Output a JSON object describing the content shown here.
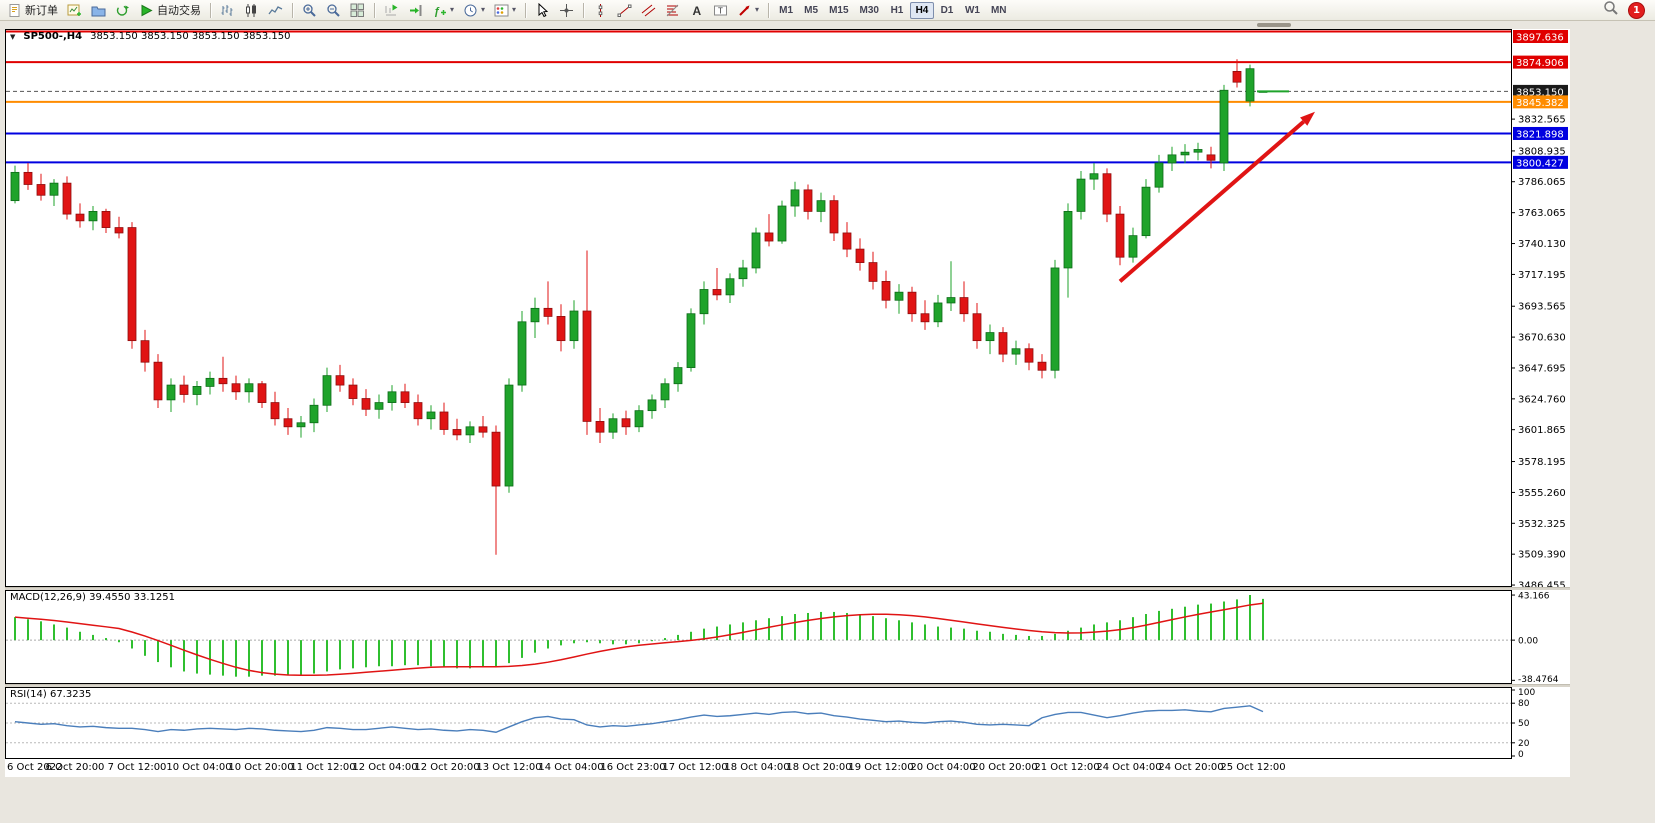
{
  "toolbar": {
    "new_order": {
      "label": "新订单"
    },
    "autotrade": {
      "label": "自动交易"
    },
    "timeframes": [
      "M1",
      "M5",
      "M15",
      "M30",
      "H1",
      "H4",
      "D1",
      "W1",
      "MN"
    ],
    "active_timeframe": "H4",
    "notification": {
      "count": "1"
    }
  },
  "chart_data": {
    "type": "candlestick",
    "symbol": "SP500-,H4",
    "ohlc_readout": "3853.150 3853.150 3853.150 3853.150",
    "colors": {
      "up": "#1fa32b",
      "up_border": "#0c6b18",
      "down": "#e01414",
      "down_border": "#8f0d0d",
      "macd": "#2fbf2f",
      "macd_signal": "#e01414",
      "rsi": "#4a7ebb",
      "line_red": "#e00000",
      "line_orange": "#ff8c00",
      "line_blue": "#0000e0",
      "current_price_tag": "#1a1a1a"
    },
    "price_axis": {
      "max": 3899.5,
      "min": 3485.0,
      "labels": [
        "3832.565",
        "3808.935",
        "3786.065",
        "3763.065",
        "3740.130",
        "3717.195",
        "3693.565",
        "3670.630",
        "3647.695",
        "3624.760",
        "3601.865",
        "3578.195",
        "3555.260",
        "3532.325",
        "3509.390",
        "3486.455"
      ]
    },
    "hlines": [
      {
        "price": 3897.636,
        "label": "3897.636",
        "color": "#e00000",
        "width": 2
      },
      {
        "price": 3874.906,
        "label": "3874.906",
        "color": "#e00000",
        "width": 2
      },
      {
        "price": 3853.15,
        "label": "3853.150",
        "color": "#555555",
        "width": 1,
        "dash": "4 3",
        "tag": "#1a1a1a"
      },
      {
        "price": 3845.382,
        "label": "3845.382",
        "color": "#ff8c00",
        "width": 2
      },
      {
        "price": 3821.898,
        "label": "3821.898",
        "color": "#0000e0",
        "width": 2
      },
      {
        "price": 3800.427,
        "label": "3800.427",
        "color": "#0000e0",
        "width": 2
      }
    ],
    "current_price": {
      "price": 3853.15,
      "label": "3853.150"
    },
    "trend_arrow": {
      "x1_bar": 85,
      "y1_price": 3712,
      "x2_bar": 100,
      "y2_price": 3838,
      "color": "#e01414"
    },
    "time_labels": [
      "6 Oct 2022",
      "6 Oct 20:00",
      "7 Oct 12:00",
      "10 Oct 04:00",
      "10 Oct 20:00",
      "11 Oct 12:00",
      "12 Oct 04:00",
      "12 Oct 20:00",
      "13 Oct 12:00",
      "14 Oct 04:00",
      "16 Oct 23:00",
      "17 Oct 12:00",
      "18 Oct 04:00",
      "18 Oct 20:00",
      "19 Oct 12:00",
      "20 Oct 04:00",
      "20 Oct 20:00",
      "21 Oct 12:00",
      "24 Oct 04:00",
      "24 Oct 20:00",
      "25 Oct 12:00"
    ],
    "candles": [
      [
        3772,
        3798,
        3770,
        3793
      ],
      [
        3793,
        3800,
        3780,
        3784
      ],
      [
        3784,
        3792,
        3772,
        3776
      ],
      [
        3776,
        3788,
        3768,
        3785
      ],
      [
        3785,
        3790,
        3758,
        3762
      ],
      [
        3762,
        3770,
        3752,
        3757
      ],
      [
        3757,
        3768,
        3750,
        3764
      ],
      [
        3764,
        3766,
        3748,
        3752
      ],
      [
        3752,
        3760,
        3744,
        3748
      ],
      [
        3752,
        3756,
        3662,
        3668
      ],
      [
        3668,
        3676,
        3645,
        3652
      ],
      [
        3652,
        3658,
        3618,
        3624
      ],
      [
        3624,
        3640,
        3615,
        3635
      ],
      [
        3635,
        3642,
        3622,
        3628
      ],
      [
        3628,
        3638,
        3620,
        3634
      ],
      [
        3634,
        3645,
        3628,
        3640
      ],
      [
        3640,
        3656,
        3630,
        3636
      ],
      [
        3636,
        3642,
        3624,
        3630
      ],
      [
        3630,
        3640,
        3622,
        3636
      ],
      [
        3636,
        3638,
        3618,
        3622
      ],
      [
        3622,
        3630,
        3605,
        3610
      ],
      [
        3610,
        3618,
        3598,
        3604
      ],
      [
        3604,
        3612,
        3596,
        3607
      ],
      [
        3607,
        3625,
        3600,
        3620
      ],
      [
        3620,
        3648,
        3615,
        3642
      ],
      [
        3642,
        3650,
        3630,
        3635
      ],
      [
        3635,
        3640,
        3620,
        3625
      ],
      [
        3625,
        3632,
        3612,
        3617
      ],
      [
        3617,
        3628,
        3610,
        3622
      ],
      [
        3622,
        3635,
        3616,
        3630
      ],
      [
        3630,
        3636,
        3618,
        3622
      ],
      [
        3622,
        3628,
        3605,
        3610
      ],
      [
        3610,
        3620,
        3602,
        3615
      ],
      [
        3615,
        3622,
        3598,
        3602
      ],
      [
        3602,
        3610,
        3594,
        3598
      ],
      [
        3598,
        3608,
        3592,
        3604
      ],
      [
        3604,
        3612,
        3596,
        3600
      ],
      [
        3600,
        3605,
        3509,
        3560
      ],
      [
        3560,
        3640,
        3555,
        3635
      ],
      [
        3635,
        3690,
        3630,
        3682
      ],
      [
        3682,
        3700,
        3670,
        3692
      ],
      [
        3692,
        3712,
        3680,
        3686
      ],
      [
        3686,
        3695,
        3660,
        3668
      ],
      [
        3668,
        3698,
        3662,
        3690
      ],
      [
        3690,
        3735,
        3598,
        3608
      ],
      [
        3608,
        3618,
        3592,
        3600
      ],
      [
        3600,
        3614,
        3595,
        3610
      ],
      [
        3610,
        3616,
        3598,
        3604
      ],
      [
        3604,
        3620,
        3600,
        3616
      ],
      [
        3616,
        3628,
        3610,
        3624
      ],
      [
        3624,
        3640,
        3618,
        3636
      ],
      [
        3636,
        3652,
        3630,
        3648
      ],
      [
        3648,
        3692,
        3645,
        3688
      ],
      [
        3688,
        3712,
        3680,
        3706
      ],
      [
        3706,
        3722,
        3698,
        3702
      ],
      [
        3702,
        3718,
        3696,
        3714
      ],
      [
        3714,
        3728,
        3708,
        3722
      ],
      [
        3722,
        3752,
        3718,
        3748
      ],
      [
        3748,
        3762,
        3738,
        3742
      ],
      [
        3742,
        3772,
        3740,
        3768
      ],
      [
        3768,
        3786,
        3760,
        3780
      ],
      [
        3780,
        3784,
        3758,
        3764
      ],
      [
        3764,
        3778,
        3756,
        3772
      ],
      [
        3772,
        3776,
        3742,
        3748
      ],
      [
        3748,
        3756,
        3730,
        3736
      ],
      [
        3736,
        3744,
        3720,
        3726
      ],
      [
        3726,
        3734,
        3706,
        3712
      ],
      [
        3712,
        3720,
        3692,
        3698
      ],
      [
        3698,
        3710,
        3688,
        3704
      ],
      [
        3704,
        3708,
        3682,
        3688
      ],
      [
        3688,
        3698,
        3676,
        3682
      ],
      [
        3682,
        3702,
        3678,
        3696
      ],
      [
        3696,
        3727,
        3690,
        3700
      ],
      [
        3700,
        3712,
        3682,
        3688
      ],
      [
        3688,
        3696,
        3662,
        3668
      ],
      [
        3668,
        3680,
        3658,
        3674
      ],
      [
        3674,
        3678,
        3652,
        3658
      ],
      [
        3658,
        3668,
        3650,
        3662
      ],
      [
        3662,
        3666,
        3646,
        3652
      ],
      [
        3652,
        3658,
        3640,
        3646
      ],
      [
        3646,
        3728,
        3640,
        3722
      ],
      [
        3722,
        3770,
        3700,
        3764
      ],
      [
        3764,
        3794,
        3758,
        3788
      ],
      [
        3788,
        3800,
        3780,
        3792
      ],
      [
        3792,
        3796,
        3756,
        3762
      ],
      [
        3762,
        3768,
        3724,
        3730
      ],
      [
        3730,
        3752,
        3726,
        3746
      ],
      [
        3746,
        3788,
        3744,
        3782
      ],
      [
        3782,
        3806,
        3778,
        3800
      ],
      [
        3800,
        3812,
        3794,
        3806
      ],
      [
        3806,
        3814,
        3800,
        3808
      ],
      [
        3808,
        3815,
        3802,
        3810
      ],
      [
        3806,
        3812,
        3796,
        3802
      ],
      [
        3800,
        3858,
        3794,
        3854
      ],
      [
        3868,
        3877,
        3856,
        3860
      ],
      [
        3846,
        3873,
        3842,
        3870
      ],
      [
        3853.15,
        3853.15,
        3853.15,
        3853.15
      ]
    ],
    "macd": {
      "display": "MACD(12,26,9) 39.4550 33.1251",
      "axis_labels": [
        "43.166",
        "0.00",
        "-38.4764"
      ],
      "max": 48,
      "min": -42,
      "histogram": [
        22,
        20,
        18,
        15,
        12,
        8,
        5,
        2,
        -2,
        -8,
        -15,
        -21,
        -26,
        -30,
        -32,
        -33,
        -34,
        -35,
        -35,
        -34,
        -34,
        -33,
        -33,
        -32,
        -30,
        -28,
        -27,
        -26,
        -25,
        -25,
        -24,
        -24,
        -25,
        -26,
        -27,
        -27,
        -26,
        -25,
        -22,
        -17,
        -12,
        -8,
        -5,
        -3,
        -2,
        -3,
        -4,
        -4,
        -3,
        -1,
        2,
        5,
        8,
        11,
        13,
        15,
        17,
        19,
        21,
        23,
        25,
        26,
        27,
        27,
        26,
        25,
        23,
        21,
        19,
        17,
        15,
        13,
        12,
        11,
        9,
        8,
        6,
        5,
        4,
        4,
        6,
        9,
        12,
        15,
        17,
        19,
        22,
        25,
        28,
        30,
        32,
        34,
        35,
        37,
        39,
        43.2,
        39.5
      ]
    },
    "rsi": {
      "display": "RSI(14) 67.3235",
      "axis_labels": [
        "100",
        "80",
        "50",
        "20",
        "0"
      ],
      "levels": [
        80,
        50,
        20
      ],
      "values": [
        52,
        50,
        48,
        49,
        46,
        44,
        45,
        43,
        42,
        42,
        40,
        37,
        40,
        39,
        41,
        42,
        41,
        40,
        42,
        41,
        39,
        38,
        37,
        39,
        43,
        42,
        40,
        40,
        42,
        44,
        42,
        40,
        41,
        39,
        38,
        40,
        39,
        36,
        44,
        52,
        58,
        60,
        56,
        55,
        47,
        44,
        46,
        45,
        47,
        49,
        52,
        55,
        59,
        62,
        60,
        61,
        63,
        65,
        63,
        66,
        67,
        64,
        65,
        61,
        59,
        56,
        54,
        52,
        53,
        51,
        50,
        52,
        53,
        51,
        48,
        47,
        48,
        47,
        46,
        58,
        63,
        66,
        66,
        62,
        58,
        61,
        65,
        68,
        69,
        69,
        70,
        68,
        67,
        72,
        74,
        76,
        67.3
      ]
    }
  }
}
